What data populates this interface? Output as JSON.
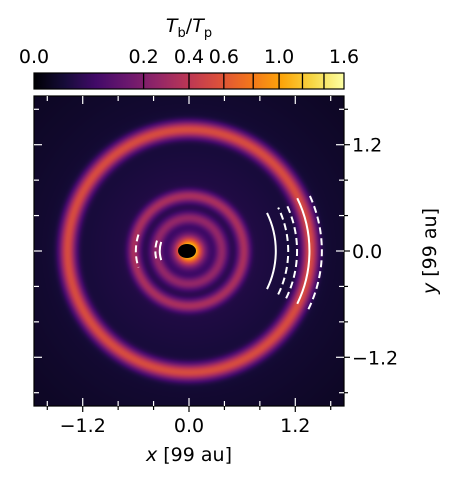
{
  "chart_data": {
    "type": "heatmap",
    "title": "",
    "xlabel": {
      "italic": "x",
      "rest": " [99 au]"
    },
    "ylabel": {
      "italic": "y",
      "rest": " [99 au]"
    },
    "xlim": [
      -1.75,
      1.75
    ],
    "ylim": [
      -1.75,
      1.75
    ],
    "xticks": [
      {
        "value": -1.2,
        "label": "−1.2"
      },
      {
        "value": 0.0,
        "label": "0.0"
      },
      {
        "value": 1.2,
        "label": "1.2"
      }
    ],
    "yticks": [
      {
        "value": 1.2,
        "label": "1.2"
      },
      {
        "value": 0.0,
        "label": "0.0"
      },
      {
        "value": -1.2,
        "label": "−1.2"
      }
    ],
    "colorbar": {
      "label_main": "T",
      "label_sub1": "b",
      "label_slash": "/",
      "label_sub2": "p",
      "scale": "power",
      "min": 0.0,
      "max": 1.6,
      "ticks": [
        {
          "value": 0.0,
          "label": "0.0"
        },
        {
          "value": 0.2,
          "label": "0.2"
        },
        {
          "value": 0.4,
          "label": "0.4"
        },
        {
          "value": 0.6,
          "label": "0.6"
        },
        {
          "value": 1.0,
          "label": "1.0"
        },
        {
          "value": 1.6,
          "label": "1.6"
        }
      ],
      "extra_ticks": [
        0.8,
        1.2,
        1.4
      ],
      "colormap": "inferno"
    },
    "rings": [
      {
        "radius": 0.12,
        "peak": 1.6,
        "type": "central-source"
      },
      {
        "radius": 0.37,
        "peak": 0.22,
        "type": "inner-ring"
      },
      {
        "radius": 0.62,
        "peak": 0.3,
        "type": "inner-ring"
      },
      {
        "radius": 1.37,
        "peak": 0.52,
        "type": "outer-ring"
      }
    ],
    "arcs": [
      {
        "radius": 0.6,
        "side": "left",
        "style": "dashed"
      },
      {
        "radius": 0.38,
        "side": "left",
        "style": "dashed"
      },
      {
        "radius": 0.33,
        "side": "left",
        "style": "solid"
      },
      {
        "radius": 0.98,
        "side": "right",
        "style": "solid"
      },
      {
        "radius": 1.12,
        "side": "right",
        "style": "dashed"
      },
      {
        "radius": 1.22,
        "side": "right",
        "style": "dashed"
      },
      {
        "radius": 1.36,
        "side": "right",
        "style": "solid"
      },
      {
        "radius": 1.5,
        "side": "right",
        "style": "dashed"
      }
    ]
  }
}
